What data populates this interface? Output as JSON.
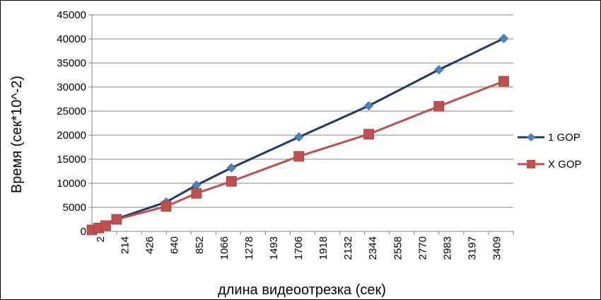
{
  "chart_data": {
    "type": "line",
    "xlabel": "длина видеоотрезка (сек)",
    "ylabel": "Время (сек*10^-2)",
    "ylim": [
      0,
      45000
    ],
    "yticks": [
      "0",
      "5000",
      "10000",
      "15000",
      "20000",
      "25000",
      "30000",
      "35000",
      "40000",
      "45000"
    ],
    "xtick_labels": [
      "2",
      "214",
      "426",
      "640",
      "852",
      "1066",
      "1278",
      "1493",
      "1706",
      "1918",
      "2132",
      "2344",
      "2558",
      "2770",
      "2983",
      "3197",
      "3409"
    ],
    "xlim": [
      2,
      3622
    ],
    "grid": "horizontal",
    "legend_position": "right",
    "x": [
      2,
      60,
      120,
      214,
      640,
      900,
      1200,
      1780,
      2380,
      2983,
      3540
    ],
    "series": [
      {
        "name": "1 GOP",
        "color": "#4F81BD",
        "line_color": "#1F3864",
        "marker": "diamond",
        "values": [
          300,
          700,
          1300,
          2600,
          6100,
          9600,
          13200,
          19600,
          26100,
          33600,
          40100
        ]
      },
      {
        "name": "X GOP",
        "color": "#C0504D",
        "line_color": "#C0504D",
        "marker": "square",
        "values": [
          300,
          700,
          1200,
          2500,
          5200,
          7900,
          10400,
          15600,
          20200,
          26000,
          31200
        ]
      }
    ]
  }
}
